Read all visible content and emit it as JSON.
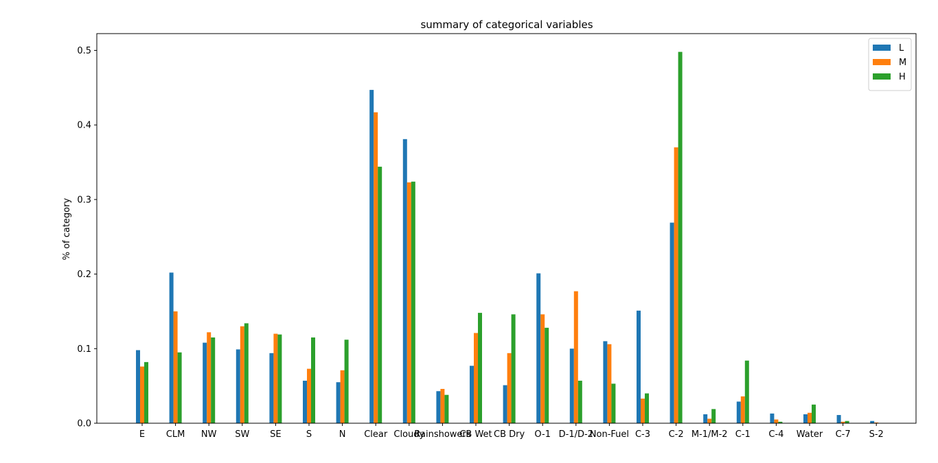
{
  "chart_data": {
    "type": "bar",
    "title": "summary of categorical variables",
    "xlabel": "",
    "ylabel": "% of category",
    "ylim": [
      0,
      0.5225
    ],
    "yticks": [
      0.0,
      0.1,
      0.2,
      0.3,
      0.4,
      0.5
    ],
    "ytick_labels": [
      "0.0",
      "0.1",
      "0.2",
      "0.3",
      "0.4",
      "0.5"
    ],
    "grid": false,
    "legend_position": "top-right",
    "categories": [
      "E",
      "CLM",
      "NW",
      "SW",
      "SE",
      "S",
      "N",
      "Clear",
      "Cloudy",
      "Rainshowers",
      "CB Wet",
      "CB Dry",
      "O-1",
      "D-1/D-2",
      "Non-Fuel",
      "C-3",
      "C-2",
      "M-1/M-2",
      "C-1",
      "C-4",
      "Water",
      "C-7",
      "S-2"
    ],
    "series": [
      {
        "name": "L",
        "color": "#1f77b4",
        "values": [
          0.098,
          0.202,
          0.108,
          0.099,
          0.094,
          0.057,
          0.055,
          0.447,
          0.381,
          0.043,
          0.077,
          0.051,
          0.201,
          0.1,
          0.11,
          0.151,
          0.269,
          0.012,
          0.029,
          0.013,
          0.012,
          0.011,
          0.003
        ]
      },
      {
        "name": "M",
        "color": "#ff7f0e",
        "values": [
          0.076,
          0.15,
          0.122,
          0.13,
          0.12,
          0.073,
          0.071,
          0.417,
          0.323,
          0.046,
          0.121,
          0.094,
          0.146,
          0.177,
          0.106,
          0.033,
          0.37,
          0.006,
          0.036,
          0.005,
          0.014,
          0.002,
          0.001
        ]
      },
      {
        "name": "H",
        "color": "#2ca02c",
        "values": [
          0.082,
          0.095,
          0.115,
          0.134,
          0.119,
          0.115,
          0.112,
          0.344,
          0.324,
          0.038,
          0.148,
          0.146,
          0.128,
          0.057,
          0.053,
          0.04,
          0.498,
          0.019,
          0.084,
          0.002,
          0.025,
          0.003,
          0.0
        ]
      }
    ]
  }
}
